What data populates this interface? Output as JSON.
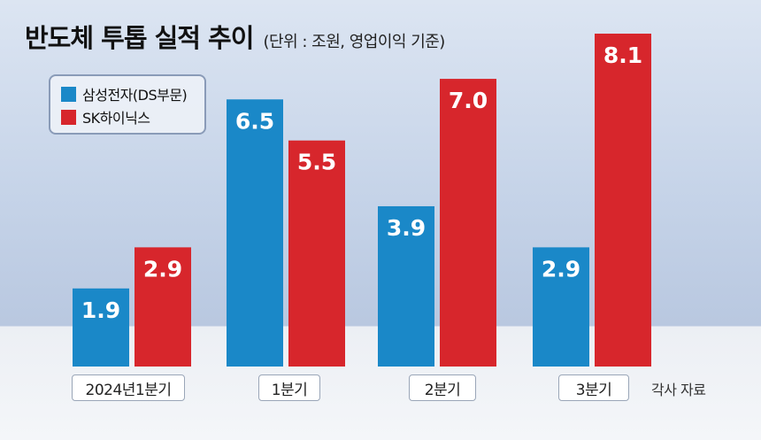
{
  "header": {
    "title": "반도체 투톱 실적 추이",
    "subtitle": "(단위 : 조원, 영업이익 기준)"
  },
  "source": "각사 자료",
  "colors": {
    "samsung": "#1a88c8",
    "hynix": "#d7262c"
  },
  "chart_data": {
    "type": "bar",
    "title": "반도체 투톱 실적 추이",
    "subtitle": "(단위 : 조원, 영업이익 기준)",
    "categories": [
      "2024년1분기",
      "1분기",
      "2분기",
      "3분기"
    ],
    "series": [
      {
        "name": "삼성전자(DS부문)",
        "values": [
          1.9,
          6.5,
          3.9,
          2.9
        ]
      },
      {
        "name": "SK하이닉스",
        "values": [
          2.9,
          5.5,
          7.0,
          8.1
        ]
      }
    ],
    "ylim": [
      0,
      8.1
    ],
    "legend": "top-left",
    "grid": false
  }
}
